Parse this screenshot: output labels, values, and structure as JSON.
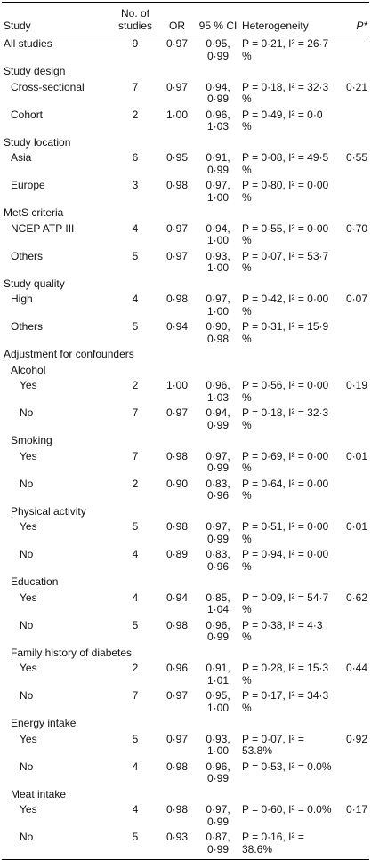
{
  "table": {
    "header": [
      "Study",
      "No. of studies",
      "OR",
      "95 % CI",
      "Heterogeneity",
      "P*"
    ],
    "overall": {
      "label": "All studies",
      "n": "9",
      "or": "0·97",
      "ci": "0·95, 0·99",
      "het": "P = 0·21, I² = 26·7 %"
    },
    "groups": [
      {
        "title": "Study design",
        "p": "0·21",
        "rows": [
          {
            "label": "Cross-sectional",
            "n": "7",
            "or": "0·97",
            "ci": "0·94, 0·99",
            "het": "P = 0·18, I² = 32·3 %"
          },
          {
            "label": "Cohort",
            "n": "2",
            "or": "1·00",
            "ci": "0·96, 1·03",
            "het": "P = 0·49, I² = 0·0 %"
          }
        ]
      },
      {
        "title": "Study location",
        "p": "0·55",
        "rows": [
          {
            "label": "Asia",
            "n": "6",
            "or": "0·95",
            "ci": "0·91, 0·99",
            "het": "P = 0·08, I² = 49·5 %"
          },
          {
            "label": "Europe",
            "n": "3",
            "or": "0·98",
            "ci": "0·97, 1·00",
            "het": "P = 0·80, I² = 0·00 %"
          }
        ]
      },
      {
        "title": "MetS criteria",
        "p": "0·70",
        "rows": [
          {
            "label": "NCEP ATP III",
            "n": "4",
            "or": "0·97",
            "ci": "0·94, 1·00",
            "het": "P = 0·55, I² = 0·00 %"
          },
          {
            "label": "Others",
            "n": "5",
            "or": "0·97",
            "ci": "0·93, 1·00",
            "het": "P = 0·07, I² = 53·7 %"
          }
        ]
      },
      {
        "title": "Study quality",
        "p": "0·07",
        "rows": [
          {
            "label": "High",
            "n": "4",
            "or": "0·98",
            "ci": "0·97, 1·00",
            "het": "P = 0·42, I² = 0·00 %"
          },
          {
            "label": "Others",
            "n": "5",
            "or": "0·94",
            "ci": "0·90, 0·98",
            "het": "P = 0·31, I² = 15·9 %"
          }
        ]
      }
    ],
    "adjustment": {
      "title": "Adjustment for confounders",
      "subgroups": [
        {
          "title": "Alcohol",
          "p": "0·19",
          "rows": [
            {
              "label": "Yes",
              "n": "2",
              "or": "1·00",
              "ci": "0·96, 1·03",
              "het": "P = 0·56, I² = 0·00 %"
            },
            {
              "label": "No",
              "n": "7",
              "or": "0·97",
              "ci": "0·94, 0·99",
              "het": "P = 0·18, I² = 32·3 %"
            }
          ]
        },
        {
          "title": "Smoking",
          "p": "0·01",
          "rows": [
            {
              "label": "Yes",
              "n": "7",
              "or": "0·98",
              "ci": "0·97, 0·99",
              "het": "P = 0·69, I² = 0·00 %"
            },
            {
              "label": "No",
              "n": "2",
              "or": "0·90",
              "ci": "0·83, 0·96",
              "het": "P = 0·64, I² = 0·00 %"
            }
          ]
        },
        {
          "title": "Physical activity",
          "p": "0·01",
          "rows": [
            {
              "label": "Yes",
              "n": "5",
              "or": "0·98",
              "ci": "0·97, 0·99",
              "het": "P = 0·51, I² = 0·00 %"
            },
            {
              "label": "No",
              "n": "4",
              "or": "0·89",
              "ci": "0·83, 0·96",
              "het": "P = 0·94, I² = 0·00 %"
            }
          ]
        },
        {
          "title": "Education",
          "p": "0·62",
          "rows": [
            {
              "label": "Yes",
              "n": "4",
              "or": "0·94",
              "ci": "0·85, 1·04",
              "het": "P = 0·09, I² = 54·7 %"
            },
            {
              "label": "No",
              "n": "5",
              "or": "0·98",
              "ci": "0·96, 0·99",
              "het": "P = 0·38, I² = 4·3 %"
            }
          ]
        },
        {
          "title": "Family history of diabetes",
          "p": "0·44",
          "rows": [
            {
              "label": "Yes",
              "n": "2",
              "or": "0·96",
              "ci": "0·91, 1·01",
              "het": "P = 0·28, I² = 15·3 %"
            },
            {
              "label": "No",
              "n": "7",
              "or": "0·97",
              "ci": "0·95, 1·00",
              "het": "P = 0·17, I² = 34·3 %"
            }
          ]
        },
        {
          "title": "Energy intake",
          "p": "0·92",
          "rows": [
            {
              "label": "Yes",
              "n": "5",
              "or": "0·97",
              "ci": "0·93, 1·00",
              "het": "P = 0·07, I² = 53.8%"
            },
            {
              "label": "No",
              "n": "4",
              "or": "0·98",
              "ci": "0·96, 0·99",
              "het": "P = 0·53, I² = 0.0%"
            }
          ]
        },
        {
          "title": "Meat intake",
          "p": "0·17",
          "rows": [
            {
              "label": "Yes",
              "n": "4",
              "or": "0·98",
              "ci": "0·97, 0·99",
              "het": "P = 0·60, I² = 0.0%"
            },
            {
              "label": "No",
              "n": "5",
              "or": "0·93",
              "ci": "0·87, 0·99",
              "het": "P = 0·16, I² = 38.6%"
            }
          ]
        }
      ]
    }
  }
}
